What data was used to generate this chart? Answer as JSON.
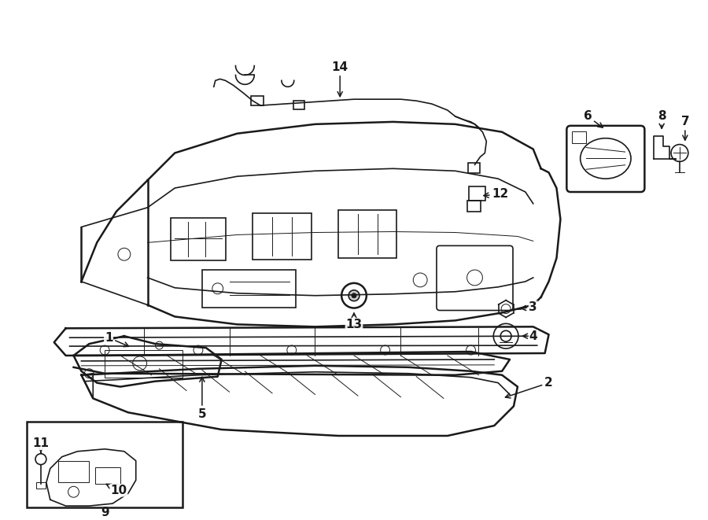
{
  "bg_color": "#ffffff",
  "line_color": "#1a1a1a",
  "fig_width": 9.0,
  "fig_height": 6.61,
  "dpi": 100,
  "annotation_fontsize": 11,
  "annotation_fontweight": "bold"
}
